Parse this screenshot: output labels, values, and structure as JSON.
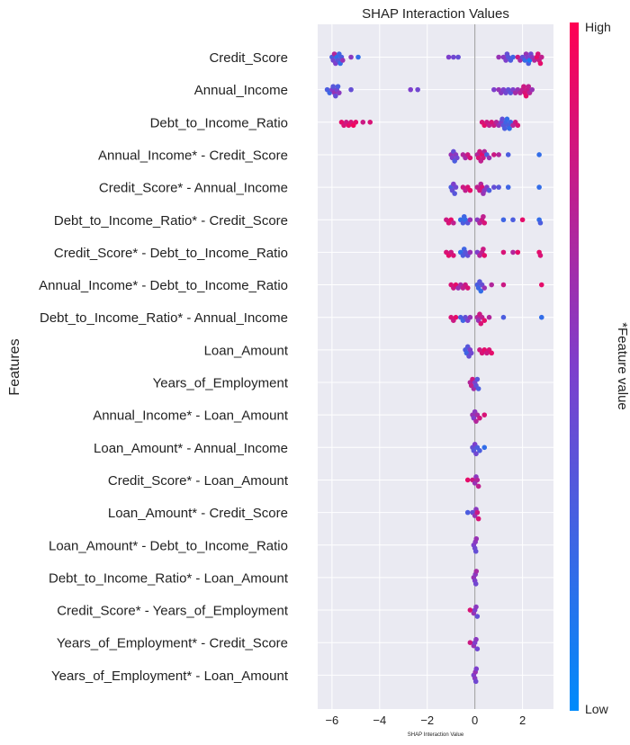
{
  "chart_data": {
    "type": "scatter",
    "subtype": "shap-beeswarm",
    "title": "SHAP Interaction Values",
    "xlabel": "SHAP Interaction Value",
    "ylabel": "Features",
    "xlim": [
      -6.6,
      3.3
    ],
    "xticks": [
      -6,
      -4,
      -2,
      0,
      2
    ],
    "xtick_labels": [
      "−6",
      "−4",
      "−2",
      "0",
      "2"
    ],
    "colorbar": {
      "label": "*Feature value",
      "high": "High",
      "low": "Low",
      "high_color": "#ff0052",
      "low_color": "#008bfb",
      "mid_color": "#7e3fcc"
    },
    "features": [
      {
        "name": "Credit_Score",
        "points": [
          [
            -6.0,
            0.3
          ],
          [
            -5.95,
            0.45
          ],
          [
            -5.9,
            0.7
          ],
          [
            -5.85,
            0.5
          ],
          [
            -5.8,
            0.2
          ],
          [
            -5.75,
            0.35
          ],
          [
            -5.7,
            0.25
          ],
          [
            -5.65,
            0.2
          ],
          [
            -5.6,
            0.3
          ],
          [
            -5.55,
            0.6
          ],
          [
            -5.2,
            0.55
          ],
          [
            -4.9,
            0.2
          ],
          [
            -1.1,
            0.5
          ],
          [
            -0.9,
            0.45
          ],
          [
            -0.7,
            0.4
          ],
          [
            1.0,
            0.6
          ],
          [
            1.2,
            0.55
          ],
          [
            1.3,
            0.5
          ],
          [
            1.35,
            0.4
          ],
          [
            1.4,
            0.35
          ],
          [
            1.5,
            0.3
          ],
          [
            1.6,
            0.25
          ],
          [
            1.8,
            0.8
          ],
          [
            1.9,
            0.65
          ],
          [
            2.0,
            0.4
          ],
          [
            2.1,
            0.2
          ],
          [
            2.15,
            0.6
          ],
          [
            2.2,
            0.5
          ],
          [
            2.25,
            0.3
          ],
          [
            2.3,
            0.1
          ],
          [
            2.35,
            0.45
          ],
          [
            2.4,
            0.55
          ],
          [
            2.5,
            0.7
          ],
          [
            2.6,
            0.9
          ],
          [
            2.65,
            0.85
          ],
          [
            2.7,
            0.8
          ],
          [
            2.75,
            0.9
          ],
          [
            2.8,
            0.75
          ]
        ]
      },
      {
        "name": "Annual_Income",
        "points": [
          [
            -6.2,
            0.3
          ],
          [
            -6.1,
            0.25
          ],
          [
            -6.0,
            0.5
          ],
          [
            -5.95,
            0.35
          ],
          [
            -5.9,
            0.6
          ],
          [
            -5.85,
            0.4
          ],
          [
            -5.8,
            0.45
          ],
          [
            -5.75,
            0.3
          ],
          [
            -5.7,
            0.55
          ],
          [
            -5.2,
            0.4
          ],
          [
            -2.7,
            0.5
          ],
          [
            -2.4,
            0.45
          ],
          [
            0.8,
            0.5
          ],
          [
            1.0,
            0.6
          ],
          [
            1.1,
            0.55
          ],
          [
            1.2,
            0.5
          ],
          [
            1.3,
            0.45
          ],
          [
            1.4,
            0.4
          ],
          [
            1.5,
            0.35
          ],
          [
            1.6,
            0.5
          ],
          [
            1.7,
            0.65
          ],
          [
            1.8,
            0.6
          ],
          [
            1.9,
            0.7
          ],
          [
            2.0,
            0.75
          ],
          [
            2.05,
            0.8
          ],
          [
            2.1,
            0.85
          ],
          [
            2.15,
            0.9
          ],
          [
            2.2,
            0.8
          ],
          [
            2.25,
            0.75
          ],
          [
            2.3,
            0.7
          ],
          [
            2.4,
            0.6
          ]
        ]
      },
      {
        "name": "Debt_to_Income_Ratio",
        "points": [
          [
            -5.6,
            0.9
          ],
          [
            -5.5,
            0.85
          ],
          [
            -5.4,
            0.8
          ],
          [
            -5.3,
            0.9
          ],
          [
            -5.2,
            0.85
          ],
          [
            -5.1,
            0.95
          ],
          [
            -5.0,
            0.9
          ],
          [
            -4.7,
            0.8
          ],
          [
            -4.4,
            0.85
          ],
          [
            0.3,
            0.85
          ],
          [
            0.4,
            0.9
          ],
          [
            0.5,
            0.8
          ],
          [
            0.6,
            0.75
          ],
          [
            0.7,
            0.85
          ],
          [
            0.8,
            0.8
          ],
          [
            0.9,
            0.7
          ],
          [
            1.0,
            0.6
          ],
          [
            1.1,
            0.5
          ],
          [
            1.15,
            0.4
          ],
          [
            1.2,
            0.35
          ],
          [
            1.25,
            0.3
          ],
          [
            1.3,
            0.25
          ],
          [
            1.35,
            0.2
          ],
          [
            1.4,
            0.3
          ],
          [
            1.45,
            0.2
          ],
          [
            1.5,
            0.25
          ],
          [
            1.6,
            0.7
          ],
          [
            1.7,
            0.8
          ],
          [
            1.8,
            0.85
          ]
        ]
      },
      {
        "name": "Annual_Income* - Credit_Score",
        "points": [
          [
            -1.0,
            0.6
          ],
          [
            -0.95,
            0.5
          ],
          [
            -0.9,
            0.4
          ],
          [
            -0.85,
            0.3
          ],
          [
            -0.8,
            0.55
          ],
          [
            -0.75,
            0.45
          ],
          [
            -0.5,
            0.7
          ],
          [
            -0.4,
            0.65
          ],
          [
            -0.3,
            0.8
          ],
          [
            -0.2,
            0.85
          ],
          [
            0.1,
            0.7
          ],
          [
            0.15,
            0.85
          ],
          [
            0.2,
            0.8
          ],
          [
            0.25,
            0.75
          ],
          [
            0.3,
            0.9
          ],
          [
            0.35,
            0.8
          ],
          [
            0.4,
            0.7
          ],
          [
            0.5,
            0.3
          ],
          [
            0.6,
            0.6
          ],
          [
            0.8,
            0.8
          ],
          [
            1.0,
            0.7
          ],
          [
            1.4,
            0.3
          ],
          [
            2.7,
            0.2
          ]
        ]
      },
      {
        "name": "Credit_Score* - Annual_Income",
        "points": [
          [
            -1.0,
            0.3
          ],
          [
            -0.95,
            0.4
          ],
          [
            -0.9,
            0.5
          ],
          [
            -0.85,
            0.35
          ],
          [
            -0.8,
            0.45
          ],
          [
            -0.5,
            0.8
          ],
          [
            -0.4,
            0.75
          ],
          [
            -0.3,
            0.85
          ],
          [
            -0.2,
            0.9
          ],
          [
            0.1,
            0.75
          ],
          [
            0.2,
            0.8
          ],
          [
            0.25,
            0.7
          ],
          [
            0.3,
            0.85
          ],
          [
            0.35,
            0.6
          ],
          [
            0.4,
            0.55
          ],
          [
            0.5,
            0.5
          ],
          [
            0.6,
            0.3
          ],
          [
            0.8,
            0.4
          ],
          [
            1.0,
            0.35
          ],
          [
            1.4,
            0.25
          ],
          [
            2.7,
            0.2
          ]
        ]
      },
      {
        "name": "Debt_to_Income_Ratio* - Credit_Score",
        "points": [
          [
            -1.2,
            0.8
          ],
          [
            -1.1,
            0.85
          ],
          [
            -1.0,
            0.9
          ],
          [
            -0.9,
            0.75
          ],
          [
            -0.6,
            0.2
          ],
          [
            -0.5,
            0.3
          ],
          [
            -0.45,
            0.25
          ],
          [
            -0.4,
            0.2
          ],
          [
            -0.3,
            0.35
          ],
          [
            -0.2,
            0.6
          ],
          [
            0.1,
            0.55
          ],
          [
            0.2,
            0.7
          ],
          [
            0.3,
            0.8
          ],
          [
            0.35,
            0.75
          ],
          [
            0.4,
            0.85
          ],
          [
            1.2,
            0.25
          ],
          [
            1.6,
            0.3
          ],
          [
            2.0,
            0.9
          ],
          [
            2.7,
            0.2
          ],
          [
            2.75,
            0.3
          ]
        ]
      },
      {
        "name": "Credit_Score* - Debt_to_Income_Ratio",
        "points": [
          [
            -1.2,
            0.85
          ],
          [
            -1.1,
            0.9
          ],
          [
            -1.0,
            0.8
          ],
          [
            -0.9,
            0.85
          ],
          [
            -0.6,
            0.2
          ],
          [
            -0.5,
            0.3
          ],
          [
            -0.45,
            0.25
          ],
          [
            -0.4,
            0.35
          ],
          [
            -0.3,
            0.4
          ],
          [
            -0.2,
            0.6
          ],
          [
            0.1,
            0.5
          ],
          [
            0.2,
            0.7
          ],
          [
            0.3,
            0.75
          ],
          [
            0.35,
            0.8
          ],
          [
            0.4,
            0.9
          ],
          [
            1.2,
            0.85
          ],
          [
            1.6,
            0.7
          ],
          [
            1.8,
            0.9
          ],
          [
            2.7,
            0.9
          ],
          [
            2.75,
            0.85
          ]
        ]
      },
      {
        "name": "Annual_Income* - Debt_to_Income_Ratio",
        "points": [
          [
            -1.0,
            0.85
          ],
          [
            -0.9,
            0.8
          ],
          [
            -0.8,
            0.9
          ],
          [
            -0.7,
            0.6
          ],
          [
            -0.6,
            0.65
          ],
          [
            -0.5,
            0.75
          ],
          [
            -0.4,
            0.8
          ],
          [
            -0.3,
            0.85
          ],
          [
            0.1,
            0.3
          ],
          [
            0.15,
            0.25
          ],
          [
            0.2,
            0.35
          ],
          [
            0.25,
            0.2
          ],
          [
            0.3,
            0.4
          ],
          [
            0.4,
            0.6
          ],
          [
            0.7,
            0.7
          ],
          [
            1.2,
            0.8
          ],
          [
            2.8,
            0.9
          ]
        ]
      },
      {
        "name": "Debt_to_Income_Ratio* - Annual_Income",
        "points": [
          [
            -1.0,
            0.85
          ],
          [
            -0.9,
            0.8
          ],
          [
            -0.8,
            0.9
          ],
          [
            -0.6,
            0.3
          ],
          [
            -0.5,
            0.25
          ],
          [
            -0.4,
            0.4
          ],
          [
            -0.3,
            0.5
          ],
          [
            -0.2,
            0.6
          ],
          [
            0.1,
            0.7
          ],
          [
            0.15,
            0.6
          ],
          [
            0.2,
            0.8
          ],
          [
            0.25,
            0.85
          ],
          [
            0.3,
            0.75
          ],
          [
            0.4,
            0.9
          ],
          [
            0.6,
            0.7
          ],
          [
            1.2,
            0.3
          ],
          [
            2.8,
            0.2
          ]
        ]
      },
      {
        "name": "Loan_Amount",
        "points": [
          [
            -0.4,
            0.3
          ],
          [
            -0.35,
            0.25
          ],
          [
            -0.3,
            0.35
          ],
          [
            -0.25,
            0.4
          ],
          [
            -0.2,
            0.5
          ],
          [
            -0.15,
            0.45
          ],
          [
            0.2,
            0.8
          ],
          [
            0.3,
            0.85
          ],
          [
            0.4,
            0.9
          ],
          [
            0.5,
            0.8
          ],
          [
            0.6,
            0.85
          ],
          [
            0.7,
            0.9
          ]
        ]
      },
      {
        "name": "Years_of_Employment",
        "points": [
          [
            -0.2,
            0.7
          ],
          [
            -0.15,
            0.75
          ],
          [
            -0.1,
            0.8
          ],
          [
            -0.05,
            0.65
          ],
          [
            0.0,
            0.5
          ],
          [
            0.05,
            0.4
          ],
          [
            0.1,
            0.35
          ],
          [
            0.15,
            0.3
          ]
        ]
      },
      {
        "name": "Annual_Income* - Loan_Amount",
        "points": [
          [
            -0.1,
            0.6
          ],
          [
            -0.05,
            0.5
          ],
          [
            0.0,
            0.55
          ],
          [
            0.05,
            0.7
          ],
          [
            0.1,
            0.65
          ],
          [
            0.2,
            0.8
          ],
          [
            0.4,
            0.85
          ]
        ]
      },
      {
        "name": "Loan_Amount* - Annual_Income",
        "points": [
          [
            -0.1,
            0.4
          ],
          [
            -0.05,
            0.35
          ],
          [
            0.0,
            0.5
          ],
          [
            0.05,
            0.45
          ],
          [
            0.1,
            0.3
          ],
          [
            0.2,
            0.3
          ],
          [
            0.4,
            0.2
          ]
        ]
      },
      {
        "name": "Credit_Score* - Loan_Amount",
        "points": [
          [
            -0.3,
            0.9
          ],
          [
            -0.1,
            0.8
          ],
          [
            0.0,
            0.6
          ],
          [
            0.05,
            0.55
          ],
          [
            0.1,
            0.7
          ],
          [
            0.15,
            0.75
          ]
        ]
      },
      {
        "name": "Loan_Amount* - Credit_Score",
        "points": [
          [
            -0.3,
            0.3
          ],
          [
            -0.1,
            0.4
          ],
          [
            0.0,
            0.6
          ],
          [
            0.05,
            0.55
          ],
          [
            0.1,
            0.8
          ],
          [
            0.15,
            0.85
          ]
        ]
      },
      {
        "name": "Loan_Amount* - Debt_to_Income_Ratio",
        "points": [
          [
            -0.05,
            0.5
          ],
          [
            0.0,
            0.45
          ],
          [
            0.02,
            0.55
          ],
          [
            0.04,
            0.4
          ],
          [
            0.06,
            0.6
          ]
        ]
      },
      {
        "name": "Debt_to_Income_Ratio* - Loan_Amount",
        "points": [
          [
            -0.05,
            0.6
          ],
          [
            0.0,
            0.5
          ],
          [
            0.02,
            0.55
          ],
          [
            0.04,
            0.45
          ],
          [
            0.06,
            0.65
          ]
        ]
      },
      {
        "name": "Credit_Score* - Years_of_Employment",
        "points": [
          [
            -0.2,
            0.85
          ],
          [
            -0.05,
            0.6
          ],
          [
            0.0,
            0.5
          ],
          [
            0.05,
            0.55
          ],
          [
            0.1,
            0.4
          ]
        ]
      },
      {
        "name": "Years_of_Employment* - Credit_Score",
        "points": [
          [
            -0.2,
            0.8
          ],
          [
            -0.05,
            0.6
          ],
          [
            0.0,
            0.5
          ],
          [
            0.05,
            0.55
          ],
          [
            0.1,
            0.45
          ]
        ]
      },
      {
        "name": "Years_of_Employment* - Loan_Amount",
        "points": [
          [
            -0.05,
            0.5
          ],
          [
            0.0,
            0.55
          ],
          [
            0.02,
            0.6
          ],
          [
            0.04,
            0.45
          ],
          [
            0.06,
            0.5
          ]
        ]
      }
    ]
  }
}
